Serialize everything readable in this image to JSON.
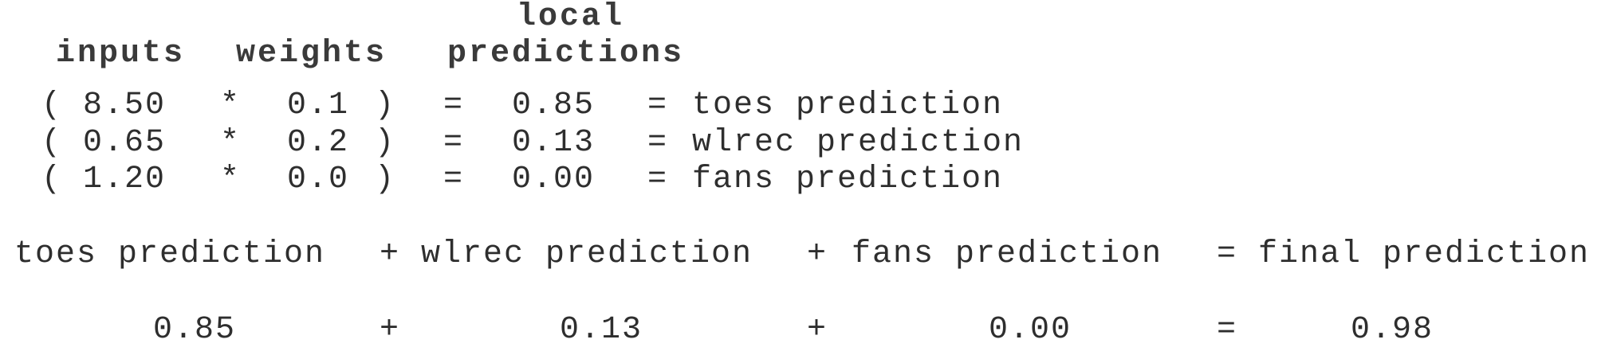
{
  "headers": {
    "local": "local",
    "inputs": "inputs",
    "weights": "weights",
    "predictions": "predictions"
  },
  "rows": [
    {
      "open": "(",
      "input": "8.50",
      "op": "*",
      "weight": "0.1",
      "close": ")",
      "eq": "=",
      "local": "0.85",
      "eq2": "=",
      "label": "toes prediction"
    },
    {
      "open": "(",
      "input": "0.65",
      "op": "*",
      "weight": "0.2",
      "close": ")",
      "eq": "=",
      "local": "0.13",
      "eq2": "=",
      "label": "wlrec prediction"
    },
    {
      "open": "(",
      "input": "1.20",
      "op": "*",
      "weight": "0.0",
      "close": ")",
      "eq": "=",
      "local": "0.00",
      "eq2": "=",
      "label": "fans prediction"
    }
  ],
  "sum_line": {
    "term1": "toes prediction",
    "plus1": "+",
    "term2": "wlrec prediction",
    "plus2": "+",
    "term3": "fans prediction",
    "eq": "=",
    "result_label": "final prediction"
  },
  "value_line": {
    "v1": "0.85",
    "plus1": "+",
    "v2": "0.13",
    "plus2": "+",
    "v3": "0.00",
    "eq": "=",
    "result": "0.98"
  }
}
